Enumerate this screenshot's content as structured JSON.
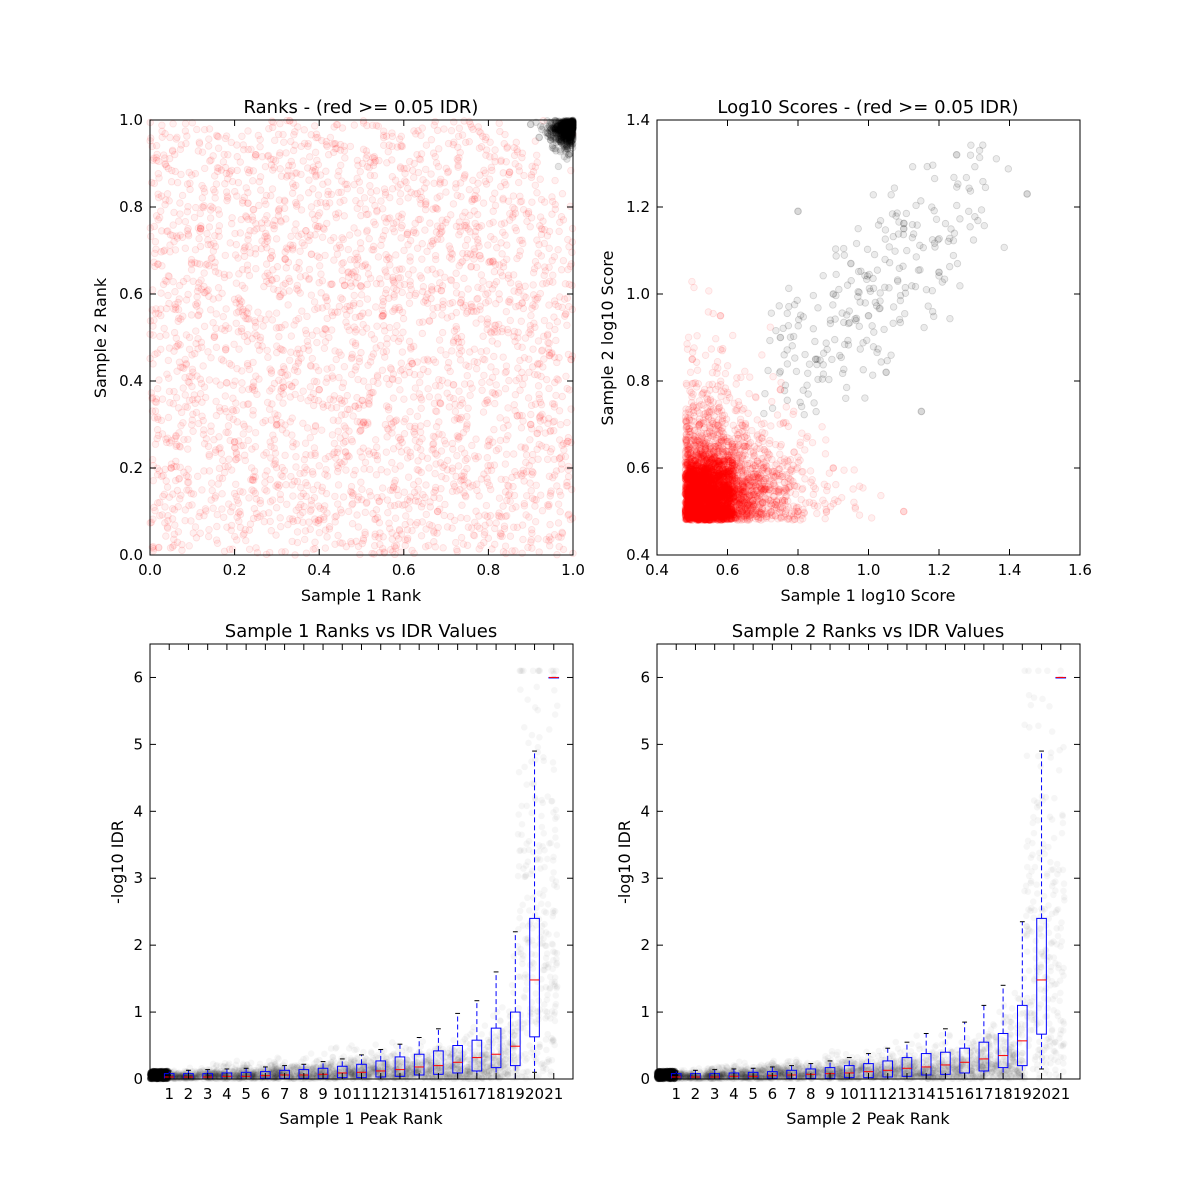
{
  "chart_data": [
    {
      "type": "scatter",
      "title": "Ranks - (red >= 0.05 IDR)",
      "xlabel": "Sample 1 Rank",
      "ylabel": "Sample 2 Rank",
      "xlim": [
        0.0,
        1.0
      ],
      "ylim": [
        0.0,
        1.0
      ],
      "xticks": [
        "0.0",
        "0.2",
        "0.4",
        "0.6",
        "0.8",
        "1.0"
      ],
      "yticks": [
        "0.0",
        "0.2",
        "0.4",
        "0.6",
        "0.8",
        "1.0"
      ],
      "grid": false,
      "colors": {
        "red": "#ff0000",
        "black": "#000000"
      },
      "series": [
        {
          "color": "red",
          "points": [
            [
              0.05,
              0.2
            ],
            [
              0.3,
              0.3
            ],
            [
              0.55,
              0.55
            ],
            [
              0.4,
              0.38
            ],
            [
              0.2,
              0.26
            ],
            [
              0.12,
              0.75
            ],
            [
              0.68,
              0.1
            ],
            [
              0.85,
              0.88
            ],
            [
              0.46,
              0.62
            ],
            [
              0.9,
              0.3
            ],
            [
              0.25,
              0.92
            ],
            [
              0.62,
              0.44
            ]
          ]
        },
        {
          "color": "black",
          "points": [
            [
              0.9,
              0.99
            ],
            [
              0.94,
              0.97
            ],
            [
              0.97,
              0.95
            ],
            [
              0.99,
              0.99
            ],
            [
              0.96,
              0.99
            ],
            [
              0.99,
              0.92
            ],
            [
              0.92,
              0.96
            ],
            [
              0.985,
              0.975
            ]
          ]
        }
      ]
    },
    {
      "type": "scatter",
      "title": "Log10 Scores - (red >= 0.05 IDR)",
      "xlabel": "Sample 1 log10 Score",
      "ylabel": "Sample 2 log10 Score",
      "xlim": [
        0.4,
        1.6
      ],
      "ylim": [
        0.4,
        1.4
      ],
      "xticks": [
        "0.4",
        "0.6",
        "0.8",
        "1.0",
        "1.2",
        "1.4",
        "1.6"
      ],
      "yticks": [
        "0.4",
        "0.6",
        "0.8",
        "1.0",
        "1.2",
        "1.4"
      ],
      "grid": false,
      "series": [
        {
          "color": "red",
          "points": [
            [
              0.5,
              0.5
            ],
            [
              0.55,
              0.6
            ],
            [
              0.6,
              0.55
            ],
            [
              0.52,
              0.7
            ],
            [
              0.65,
              0.65
            ],
            [
              0.7,
              0.52
            ],
            [
              0.5,
              0.85
            ],
            [
              0.8,
              0.5
            ],
            [
              0.75,
              0.78
            ],
            [
              0.58,
              0.95
            ],
            [
              0.9,
              0.6
            ],
            [
              1.1,
              0.5
            ]
          ]
        },
        {
          "color": "black",
          "points": [
            [
              0.75,
              0.9
            ],
            [
              0.85,
              0.85
            ],
            [
              0.9,
              1.0
            ],
            [
              1.0,
              0.95
            ],
            [
              1.1,
              1.15
            ],
            [
              1.2,
              1.05
            ],
            [
              1.25,
              1.32
            ],
            [
              1.45,
              1.23
            ],
            [
              0.8,
              1.19
            ],
            [
              1.15,
              0.73
            ],
            [
              0.95,
              1.07
            ],
            [
              1.05,
              0.82
            ]
          ]
        }
      ]
    },
    {
      "type": "box",
      "title": "Sample 1 Ranks vs IDR Values",
      "xlabel": "Sample 1 Peak Rank",
      "ylabel": "-log10 IDR",
      "ylim": [
        0,
        6.5
      ],
      "categories": [
        "1",
        "2",
        "3",
        "4",
        "5",
        "6",
        "7",
        "8",
        "9",
        "10",
        "11",
        "12",
        "13",
        "14",
        "15",
        "16",
        "17",
        "18",
        "19",
        "20",
        "21"
      ],
      "yticks": [
        "0",
        "1",
        "2",
        "3",
        "4",
        "5",
        "6"
      ],
      "colors": {
        "box": "#0000ff",
        "median": "#ff0000",
        "whisker_cap": "#000000",
        "points": "#000000"
      },
      "boxes": [
        {
          "whislo": 0,
          "q1": 0.0,
          "med": 0.03,
          "q3": 0.08,
          "whishi": 0.12
        },
        {
          "whislo": 0,
          "q1": 0.0,
          "med": 0.03,
          "q3": 0.08,
          "whishi": 0.13
        },
        {
          "whislo": 0,
          "q1": 0.0,
          "med": 0.03,
          "q3": 0.08,
          "whishi": 0.14
        },
        {
          "whislo": 0,
          "q1": 0.0,
          "med": 0.04,
          "q3": 0.09,
          "whishi": 0.15
        },
        {
          "whislo": 0,
          "q1": 0.0,
          "med": 0.04,
          "q3": 0.1,
          "whishi": 0.16
        },
        {
          "whislo": 0,
          "q1": 0.01,
          "med": 0.05,
          "q3": 0.11,
          "whishi": 0.18
        },
        {
          "whislo": 0,
          "q1": 0.01,
          "med": 0.06,
          "q3": 0.13,
          "whishi": 0.2
        },
        {
          "whislo": 0,
          "q1": 0.01,
          "med": 0.06,
          "q3": 0.14,
          "whishi": 0.22
        },
        {
          "whislo": 0,
          "q1": 0.01,
          "med": 0.07,
          "q3": 0.16,
          "whishi": 0.26
        },
        {
          "whislo": 0,
          "q1": 0.02,
          "med": 0.09,
          "q3": 0.19,
          "whishi": 0.3
        },
        {
          "whislo": 0,
          "q1": 0.02,
          "med": 0.1,
          "q3": 0.22,
          "whishi": 0.36
        },
        {
          "whislo": 0,
          "q1": 0.03,
          "med": 0.12,
          "q3": 0.27,
          "whishi": 0.44
        },
        {
          "whislo": 0,
          "q1": 0.04,
          "med": 0.14,
          "q3": 0.33,
          "whishi": 0.52
        },
        {
          "whislo": 0,
          "q1": 0.06,
          "med": 0.18,
          "q3": 0.37,
          "whishi": 0.62
        },
        {
          "whislo": 0,
          "q1": 0.07,
          "med": 0.2,
          "q3": 0.42,
          "whishi": 0.75
        },
        {
          "whislo": 0,
          "q1": 0.09,
          "med": 0.25,
          "q3": 0.5,
          "whishi": 0.98
        },
        {
          "whislo": 0,
          "q1": 0.12,
          "med": 0.32,
          "q3": 0.58,
          "whishi": 1.17
        },
        {
          "whislo": 0,
          "q1": 0.17,
          "med": 0.37,
          "q3": 0.76,
          "whishi": 1.6
        },
        {
          "whislo": 0,
          "q1": 0.2,
          "med": 0.49,
          "q3": 1.0,
          "whishi": 2.2
        },
        {
          "whislo": 0.1,
          "q1": 0.63,
          "med": 1.48,
          "q3": 2.4,
          "whishi": 4.9
        },
        {
          "whislo": 6.0,
          "q1": 6.0,
          "med": 6.0,
          "q3": 6.0,
          "whishi": 6.0
        }
      ]
    },
    {
      "type": "box",
      "title": "Sample 2 Ranks vs IDR Values",
      "xlabel": "Sample 2 Peak Rank",
      "ylabel": "-log10 IDR",
      "ylim": [
        0,
        6.5
      ],
      "categories": [
        "1",
        "2",
        "3",
        "4",
        "5",
        "6",
        "7",
        "8",
        "9",
        "10",
        "11",
        "12",
        "13",
        "14",
        "15",
        "16",
        "17",
        "18",
        "19",
        "20",
        "21"
      ],
      "yticks": [
        "0",
        "1",
        "2",
        "3",
        "4",
        "5",
        "6"
      ],
      "boxes": [
        {
          "whislo": 0,
          "q1": 0.0,
          "med": 0.03,
          "q3": 0.08,
          "whishi": 0.12
        },
        {
          "whislo": 0,
          "q1": 0.0,
          "med": 0.03,
          "q3": 0.08,
          "whishi": 0.13
        },
        {
          "whislo": 0,
          "q1": 0.0,
          "med": 0.03,
          "q3": 0.08,
          "whishi": 0.14
        },
        {
          "whislo": 0,
          "q1": 0.0,
          "med": 0.04,
          "q3": 0.09,
          "whishi": 0.15
        },
        {
          "whislo": 0,
          "q1": 0.0,
          "med": 0.04,
          "q3": 0.1,
          "whishi": 0.16
        },
        {
          "whislo": 0,
          "q1": 0.01,
          "med": 0.05,
          "q3": 0.11,
          "whishi": 0.18
        },
        {
          "whislo": 0,
          "q1": 0.01,
          "med": 0.06,
          "q3": 0.13,
          "whishi": 0.2
        },
        {
          "whislo": 0,
          "q1": 0.01,
          "med": 0.07,
          "q3": 0.15,
          "whishi": 0.23
        },
        {
          "whislo": 0,
          "q1": 0.01,
          "med": 0.08,
          "q3": 0.17,
          "whishi": 0.27
        },
        {
          "whislo": 0,
          "q1": 0.02,
          "med": 0.09,
          "q3": 0.2,
          "whishi": 0.32
        },
        {
          "whislo": 0,
          "q1": 0.02,
          "med": 0.11,
          "q3": 0.23,
          "whishi": 0.38
        },
        {
          "whislo": 0,
          "q1": 0.03,
          "med": 0.13,
          "q3": 0.27,
          "whishi": 0.46
        },
        {
          "whislo": 0,
          "q1": 0.04,
          "med": 0.16,
          "q3": 0.32,
          "whishi": 0.55
        },
        {
          "whislo": 0,
          "q1": 0.06,
          "med": 0.18,
          "q3": 0.38,
          "whishi": 0.68
        },
        {
          "whislo": 0,
          "q1": 0.07,
          "med": 0.21,
          "q3": 0.4,
          "whishi": 0.75
        },
        {
          "whislo": 0,
          "q1": 0.09,
          "med": 0.25,
          "q3": 0.46,
          "whishi": 0.85
        },
        {
          "whislo": 0,
          "q1": 0.12,
          "med": 0.3,
          "q3": 0.55,
          "whishi": 1.1
        },
        {
          "whislo": 0,
          "q1": 0.17,
          "med": 0.35,
          "q3": 0.68,
          "whishi": 1.4
        },
        {
          "whislo": 0,
          "q1": 0.2,
          "med": 0.57,
          "q3": 1.1,
          "whishi": 2.35
        },
        {
          "whislo": 0.15,
          "q1": 0.67,
          "med": 1.48,
          "q3": 2.4,
          "whishi": 4.9
        },
        {
          "whislo": 6.0,
          "q1": 6.0,
          "med": 6.0,
          "q3": 6.0,
          "whishi": 6.0
        }
      ]
    }
  ]
}
